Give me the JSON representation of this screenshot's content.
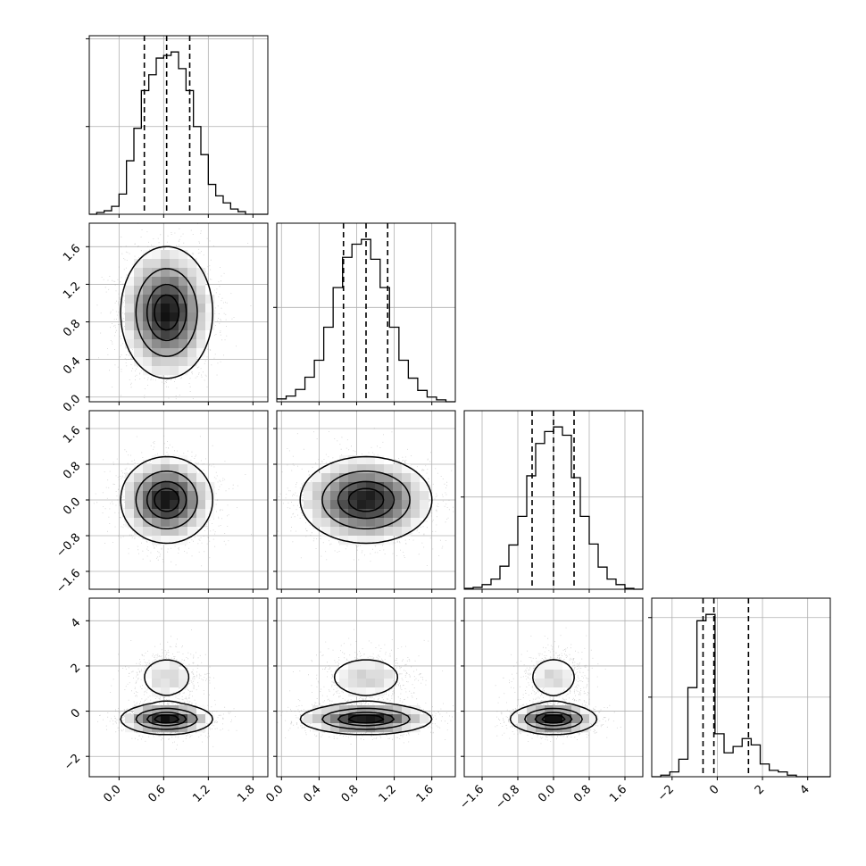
{
  "chart_data": {
    "type": "corner",
    "n_params": 4,
    "grid": true,
    "params": [
      {
        "range": [
          -0.4,
          2.0
        ],
        "ticks": [
          "0.0",
          "0.6",
          "1.2",
          "1.8"
        ],
        "tick_values": [
          0.0,
          0.6,
          1.2,
          1.8
        ],
        "quantiles": [
          0.34,
          0.64,
          0.95
        ]
      },
      {
        "range": [
          -0.05,
          1.85
        ],
        "ticks": [
          "0.0",
          "0.4",
          "0.8",
          "1.2",
          "1.6"
        ],
        "tick_values": [
          0.0,
          0.4,
          0.8,
          1.2,
          1.6
        ],
        "quantiles": [
          0.66,
          0.9,
          1.13
        ]
      },
      {
        "range": [
          -2.0,
          2.0
        ],
        "ticks": [
          "−1.6",
          "−0.8",
          "0.0",
          "0.8",
          "1.6"
        ],
        "tick_values": [
          -1.6,
          -0.8,
          0.0,
          0.8,
          1.6
        ],
        "quantiles": [
          -0.48,
          0.0,
          0.46
        ]
      },
      {
        "range": [
          -2.9,
          5.0
        ],
        "ticks": [
          "−2",
          "0",
          "2",
          "4"
        ],
        "tick_values": [
          -2,
          0,
          2,
          4
        ],
        "quantiles": [
          -0.63,
          -0.15,
          1.38
        ]
      }
    ],
    "histograms": [
      {
        "edges": [
          -0.4,
          -0.3,
          -0.2,
          -0.1,
          0.0,
          0.1,
          0.2,
          0.3,
          0.4,
          0.5,
          0.6,
          0.7,
          0.8,
          0.9,
          1.0,
          1.1,
          1.2,
          1.3,
          1.4,
          1.5,
          1.6,
          1.7,
          1.8,
          1.9,
          2.0
        ],
        "counts": [
          0,
          2,
          4,
          9,
          23,
          61,
          98,
          141,
          159,
          178,
          181,
          185,
          166,
          141,
          100,
          68,
          34,
          21,
          13,
          6,
          3,
          0,
          0,
          0
        ]
      },
      {
        "edges": [
          -0.05,
          0.05,
          0.15,
          0.25,
          0.35,
          0.45,
          0.55,
          0.65,
          0.75,
          0.85,
          0.95,
          1.05,
          1.15,
          1.25,
          1.35,
          1.45,
          1.55,
          1.65,
          1.75,
          1.85
        ],
        "counts": [
          3,
          6,
          13,
          26,
          44,
          79,
          121,
          153,
          167,
          172,
          151,
          121,
          79,
          44,
          25,
          12,
          5,
          2,
          0
        ]
      },
      {
        "edges": [
          -2.0,
          -1.8,
          -1.6,
          -1.4,
          -1.2,
          -1.0,
          -0.8,
          -0.6,
          -0.4,
          -0.2,
          0.0,
          0.2,
          0.4,
          0.6,
          0.8,
          1.0,
          1.2,
          1.4,
          1.6,
          1.8,
          2.0
        ],
        "counts": [
          1,
          2,
          5,
          11,
          25,
          48,
          79,
          123,
          158,
          171,
          176,
          167,
          121,
          79,
          49,
          24,
          11,
          5,
          1,
          0
        ]
      },
      {
        "edges": [
          -2.9,
          -2.5,
          -2.1,
          -1.7,
          -1.3,
          -0.9,
          -0.5,
          -0.1,
          0.3,
          0.7,
          1.1,
          1.5,
          1.9,
          2.3,
          2.7,
          3.1,
          3.5,
          3.9,
          4.3,
          4.7,
          5.0
        ],
        "counts": [
          0,
          1,
          3,
          11,
          56,
          98,
          102,
          27,
          15,
          19,
          24,
          20,
          8,
          4,
          3,
          1,
          0,
          0,
          0,
          0
        ]
      }
    ],
    "pairs": [
      {
        "x": 0,
        "y": 1,
        "components": [
          {
            "weight": 1.0,
            "mx": 0.64,
            "my": 0.9,
            "sx": 0.3,
            "sy": 0.34
          }
        ]
      },
      {
        "x": 0,
        "y": 2,
        "components": [
          {
            "weight": 1.0,
            "mx": 0.64,
            "my": 0.0,
            "sx": 0.3,
            "sy": 0.47
          }
        ]
      },
      {
        "x": 1,
        "y": 2,
        "components": [
          {
            "weight": 1.0,
            "mx": 0.9,
            "my": 0.0,
            "sx": 0.34,
            "sy": 0.47
          }
        ]
      },
      {
        "x": 0,
        "y": 3,
        "components": [
          {
            "weight": 0.72,
            "mx": 0.64,
            "my": -0.35,
            "sx": 0.3,
            "sy": 0.33
          },
          {
            "weight": 0.28,
            "mx": 0.64,
            "my": 1.5,
            "sx": 0.24,
            "sy": 0.62
          }
        ]
      },
      {
        "x": 1,
        "y": 3,
        "components": [
          {
            "weight": 0.72,
            "mx": 0.9,
            "my": -0.35,
            "sx": 0.34,
            "sy": 0.33
          },
          {
            "weight": 0.28,
            "mx": 0.9,
            "my": 1.5,
            "sx": 0.27,
            "sy": 0.62
          }
        ]
      },
      {
        "x": 2,
        "y": 3,
        "components": [
          {
            "weight": 0.72,
            "mx": 0.0,
            "my": -0.35,
            "sx": 0.47,
            "sy": 0.33
          },
          {
            "weight": 0.28,
            "mx": 0.0,
            "my": 1.5,
            "sx": 0.37,
            "sy": 0.62
          }
        ]
      }
    ],
    "contour_levels": [
      0.12,
      0.39,
      0.68,
      0.86
    ],
    "colors": {
      "line": "#000000",
      "points": "#7f7f7f",
      "grid": "#b0b0b0",
      "fill_dark": "#000000",
      "fill_light": "#ffffff"
    }
  }
}
